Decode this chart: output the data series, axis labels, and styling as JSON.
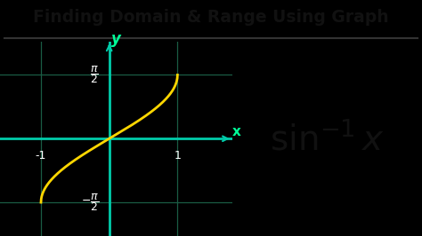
{
  "title": "Finding Domain & Range Using Graph",
  "title_color": "#111111",
  "title_bg_color": "#F5C518",
  "bg_color": "#000000",
  "axis_color": "#00CCAA",
  "curve_color": "#FFD700",
  "grid_color": "#1A5C44",
  "text_color": "#FFFFFF",
  "formula_bg": "#F5C518",
  "formula_text_color": "#111111",
  "xlim": [
    -1.6,
    1.8
  ],
  "ylim": [
    -2.4,
    2.4
  ],
  "x_label": "x",
  "y_label": "y",
  "axis_label_color": "#00FF99",
  "title_fontsize": 13.5,
  "formula_fontsize": 28
}
